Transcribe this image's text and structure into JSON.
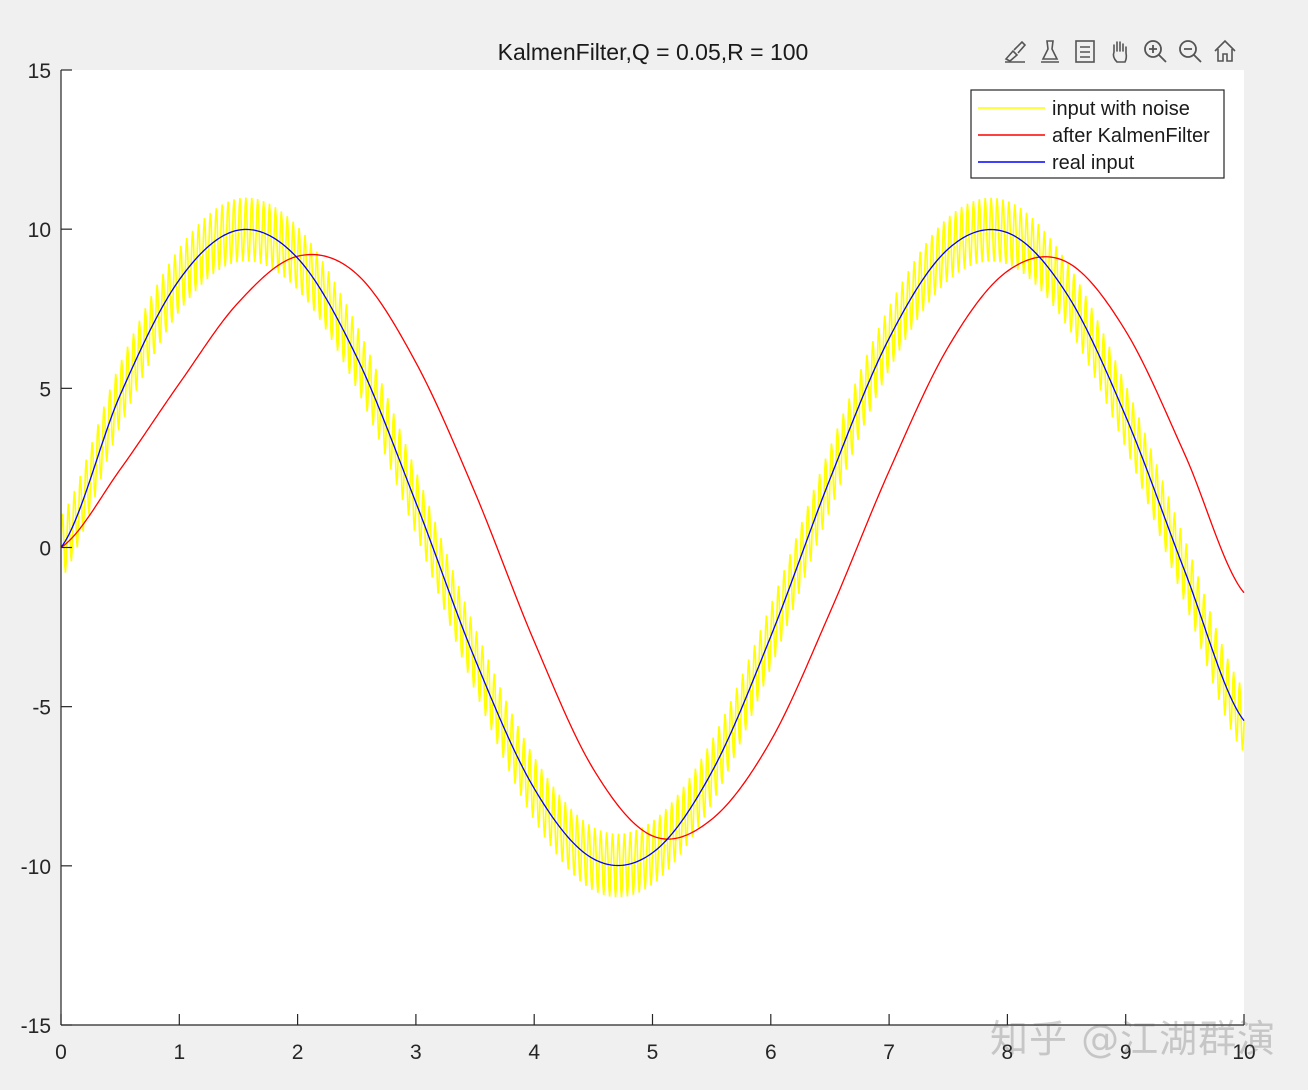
{
  "toolbar": {
    "icons": [
      "brush-icon",
      "data-cursor-icon",
      "insert-legend-icon",
      "pan-hand-icon",
      "zoom-in-icon",
      "zoom-out-icon",
      "home-icon"
    ]
  },
  "watermark": "知乎 @江湖群演",
  "chart_data": {
    "type": "line",
    "title": "KalmenFilter,Q = 0.05,R = 100",
    "xlabel": "",
    "ylabel": "",
    "xlim": [
      0,
      10
    ],
    "ylim": [
      -15,
      15
    ],
    "xticks": [
      0,
      1,
      2,
      3,
      4,
      5,
      6,
      7,
      8,
      9,
      10
    ],
    "yticks": [
      15,
      10,
      5,
      0,
      -5,
      -10,
      -15
    ],
    "grid": false,
    "legend_position": "top-right",
    "series": [
      {
        "name": "input with noise",
        "color": "#ffff00",
        "x": [
          0,
          0.5,
          1,
          1.5,
          2,
          2.5,
          3,
          3.5,
          4,
          4.5,
          5,
          5.5,
          6,
          6.5,
          7,
          7.5,
          8,
          8.5,
          9,
          9.5,
          10
        ],
        "y": [
          0,
          4.79,
          8.41,
          9.97,
          9.09,
          5.98,
          1.41,
          -3.51,
          -7.57,
          -9.78,
          -9.59,
          -7.06,
          -2.79,
          2.15,
          6.57,
          9.38,
          9.89,
          7.98,
          4.12,
          -0.75,
          -5.44
        ],
        "noise_amplitude": 1.0
      },
      {
        "name": "after KalmenFilter",
        "color": "#ff0000",
        "x": [
          0,
          0.5,
          1,
          1.5,
          2,
          2.5,
          3,
          3.5,
          4,
          4.5,
          5,
          5.5,
          6,
          6.5,
          7,
          7.5,
          8,
          8.5,
          9,
          9.5,
          10
        ],
        "y": [
          0,
          2.45,
          5.15,
          7.7,
          9.15,
          8.59,
          5.81,
          1.72,
          -2.95,
          -6.96,
          -9.06,
          -8.54,
          -6.07,
          -2.04,
          2.4,
          6.3,
          8.68,
          8.97,
          6.8,
          2.92,
          -1.42
        ]
      },
      {
        "name": "real input",
        "color": "#0000ff",
        "x": [
          0,
          0.5,
          1,
          1.5,
          2,
          2.5,
          3,
          3.5,
          4,
          4.5,
          5,
          5.5,
          6,
          6.5,
          7,
          7.5,
          8,
          8.5,
          9,
          9.5,
          10
        ],
        "y": [
          0,
          4.79,
          8.41,
          9.97,
          9.09,
          5.98,
          1.41,
          -3.51,
          -7.57,
          -9.78,
          -9.59,
          -7.06,
          -2.79,
          2.15,
          6.57,
          9.38,
          9.89,
          7.98,
          4.12,
          -0.75,
          -5.44
        ]
      }
    ]
  }
}
